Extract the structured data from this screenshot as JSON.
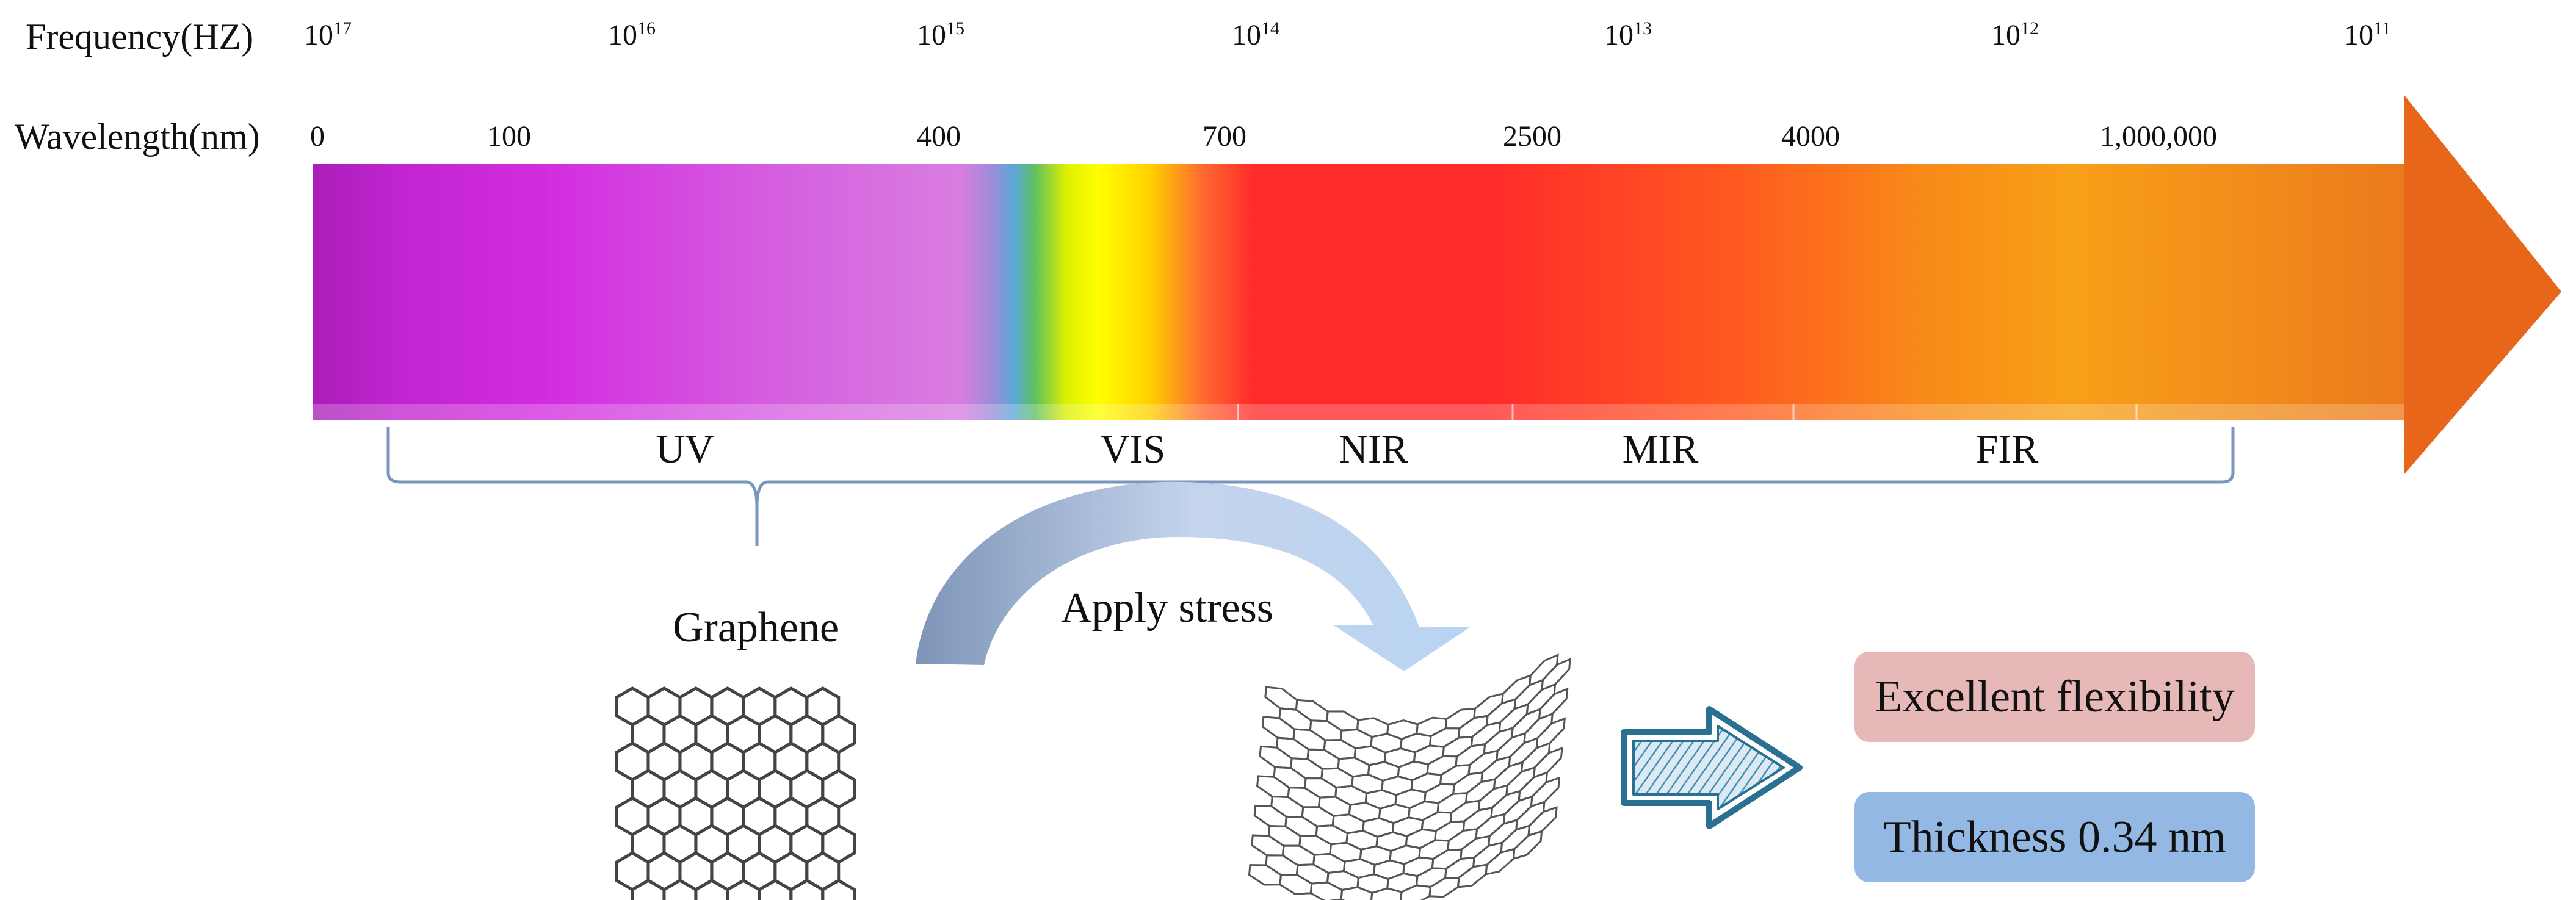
{
  "axes": {
    "frequency_title": "Frequency(HZ)",
    "wavelength_title": "Wavelength(nm)"
  },
  "frequency_ticks": [
    {
      "base": "10",
      "exp": "17"
    },
    {
      "base": "10",
      "exp": "16"
    },
    {
      "base": "10",
      "exp": "15"
    },
    {
      "base": "10",
      "exp": "14"
    },
    {
      "base": "10",
      "exp": "13"
    },
    {
      "base": "10",
      "exp": "12"
    },
    {
      "base": "10",
      "exp": "11"
    }
  ],
  "wavelength_ticks": [
    "0",
    "100",
    "400",
    "700",
    "2500",
    "4000",
    "1,000,000"
  ],
  "regions": [
    "UV",
    "VIS",
    "NIR",
    "MIR",
    "FIR"
  ],
  "graphene": {
    "flat_label": "Graphene",
    "stress_label": "Apply stress"
  },
  "properties": {
    "flexibility": "Excellent flexibility",
    "thickness": "Thickness 0.34 nm"
  },
  "colors": {
    "uv": "#b21ec0",
    "vis_yellow": "#ffff00",
    "nir_red": "#ff2a2a",
    "fir_orange": "#f8a018",
    "arrow_tip": "#e8661a",
    "flex_badge": "#e6b9b8",
    "thick_badge": "#93b8e3",
    "hollow_arrow": "#2a7090"
  }
}
